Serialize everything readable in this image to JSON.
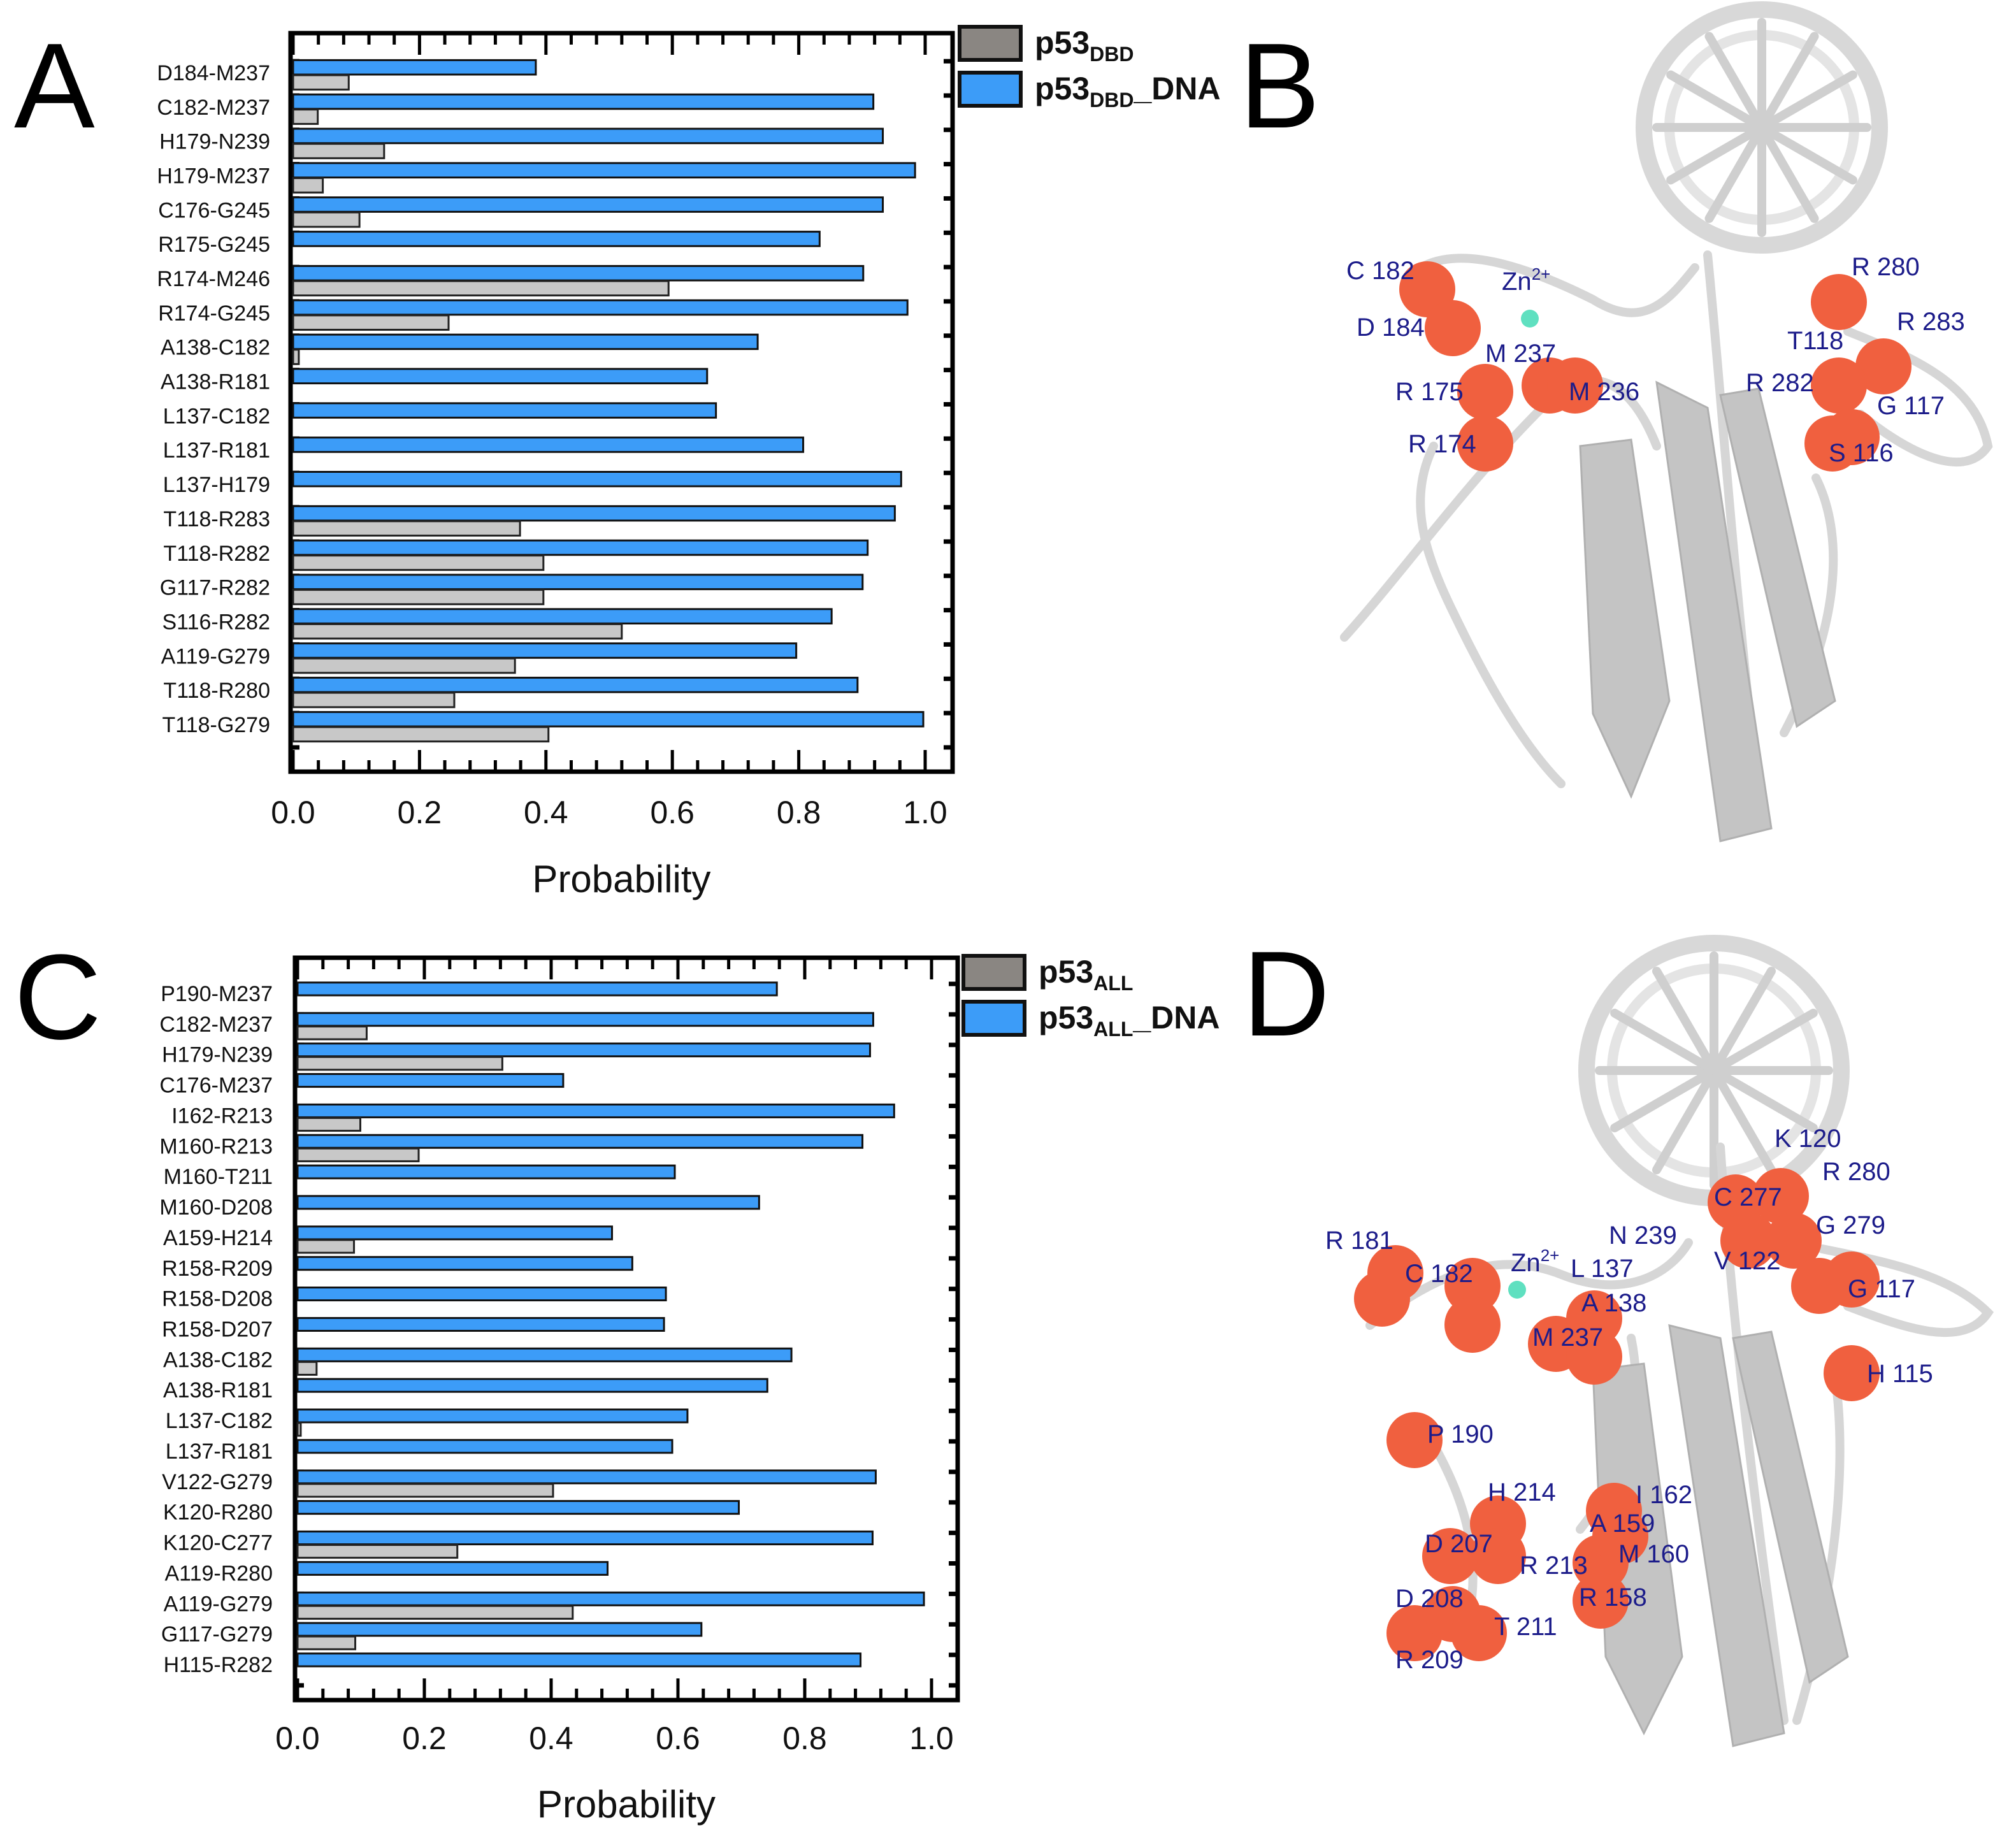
{
  "panel_labels": {
    "a": "A",
    "b": "B",
    "c": "C",
    "d": "D"
  },
  "colors": {
    "dna_bound": "#3c9cf8",
    "free": "#c8c8c8",
    "legend_free": "#8a8682",
    "sphere": "#f0603f",
    "residue_label": "#1c1c8a",
    "zinc": "#5fe0c0",
    "ribbon": "#d6d6d6"
  },
  "chart_data": [
    {
      "type": "bar",
      "orientation": "horizontal",
      "xlabel": "Probability",
      "xlim": [
        0.0,
        1.0
      ],
      "xticks": [
        "0.0",
        "0.2",
        "0.4",
        "0.6",
        "0.8",
        "1.0"
      ],
      "grid": false,
      "legend_placement": "outside-top-right",
      "legend": [
        {
          "main": "p53",
          "sub": "DBD",
          "suffix": "",
          "color": "#8a8682"
        },
        {
          "main": "p53",
          "sub": "DBD",
          "suffix": "_DNA",
          "color": "#3c9cf8"
        }
      ],
      "categories": [
        "D184-M237",
        "C182-M237",
        "H179-N239",
        "H179-M237",
        "C176-G245",
        "R175-G245",
        "R174-M246",
        "R174-G245",
        "A138-C182",
        "A138-R181",
        "L137-C182",
        "L137-R181",
        "L137-H179",
        "T118-R283",
        "T118-R282",
        "G117-R282",
        "S116-R282",
        "A119-G279",
        "T118-R280",
        "T118-G279"
      ],
      "series": [
        {
          "name": "p53DBD",
          "values": [
            0.088,
            0.039,
            0.144,
            0.047,
            0.105,
            0.0,
            0.594,
            0.246,
            0.009,
            0.0,
            0.0,
            0.0,
            0.0,
            0.359,
            0.396,
            0.396,
            0.52,
            0.351,
            0.255,
            0.404
          ]
        },
        {
          "name": "p53DBD_DNA",
          "values": [
            0.384,
            0.918,
            0.933,
            0.984,
            0.933,
            0.833,
            0.902,
            0.972,
            0.735,
            0.655,
            0.669,
            0.807,
            0.962,
            0.952,
            0.909,
            0.901,
            0.852,
            0.796,
            0.893,
            0.997
          ]
        }
      ]
    },
    {
      "type": "bar",
      "orientation": "horizontal",
      "xlabel": "Probability",
      "xlim": [
        0.0,
        1.0
      ],
      "xticks": [
        "0.0",
        "0.2",
        "0.4",
        "0.6",
        "0.8",
        "1.0"
      ],
      "grid": false,
      "legend_placement": "outside-top-right",
      "legend": [
        {
          "main": "p53",
          "sub": "ALL",
          "suffix": "",
          "color": "#8a8682"
        },
        {
          "main": "p53",
          "sub": "ALL",
          "suffix": "_DNA",
          "color": "#3c9cf8"
        }
      ],
      "categories": [
        "P190-M237",
        "C182-M237",
        "H179-N239",
        "C176-M237",
        "I162-R213",
        "M160-R213",
        "M160-T211",
        "M160-D208",
        "A159-H214",
        "R158-R209",
        "R158-D208",
        "R158-D207",
        "A138-C182",
        "A138-R181",
        "L137-C182",
        "L137-R181",
        "V122-G279",
        "K120-R280",
        "K120-C277",
        "A119-R280",
        "A119-G279",
        "G117-G279",
        "H115-R282"
      ],
      "series": [
        {
          "name": "p53ALL",
          "values": [
            0.0,
            0.109,
            0.323,
            0.0,
            0.099,
            0.191,
            0.0,
            0.0,
            0.089,
            0.0,
            0.0,
            0.0,
            0.03,
            0.0,
            0.005,
            0.0,
            0.403,
            0.0,
            0.252,
            0.0,
            0.434,
            0.091,
            0.0
          ]
        },
        {
          "name": "p53ALL_DNA",
          "values": [
            0.756,
            0.908,
            0.903,
            0.419,
            0.941,
            0.891,
            0.595,
            0.728,
            0.496,
            0.528,
            0.581,
            0.578,
            0.779,
            0.741,
            0.615,
            0.591,
            0.912,
            0.696,
            0.907,
            0.489,
            0.988,
            0.637,
            0.888
          ]
        }
      ]
    }
  ],
  "structure_b": {
    "zinc_label": {
      "main": "Zn",
      "sup": "2+"
    },
    "residue_labels": [
      "C 182",
      "D 184",
      "M 237",
      "R 175",
      "M 236",
      "R 174",
      "R 280",
      "R 283",
      "T118",
      "R 282",
      "G 117",
      "S 116"
    ]
  },
  "structure_d": {
    "zinc_label": {
      "main": "Zn",
      "sup": "2+"
    },
    "residue_labels": [
      "K 120",
      "R 280",
      "C 277",
      "G 279",
      "V 122",
      "G 117",
      "R 181",
      "C 182",
      "L 137",
      "N 239",
      "A 138",
      "M 237",
      "H 115",
      "P 190",
      "H 214",
      "I 162",
      "A 159",
      "M 160",
      "D 207",
      "R 213",
      "R 158",
      "D 208",
      "T 211",
      "R 209"
    ]
  }
}
